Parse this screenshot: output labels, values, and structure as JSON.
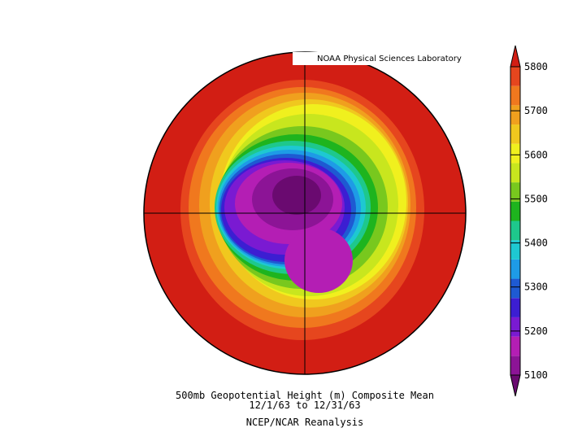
{
  "map": {
    "credit": "NOAA Physical Sciences Laboratory",
    "caption": [
      "500mb Geopotential Height (m) Composite Mean",
      "12/1/63  to 12/31/63",
      "NCEP/NCAR Reanalysis"
    ]
  },
  "colorbar": {
    "ticks": [
      5100,
      5200,
      5300,
      5400,
      5500,
      5600,
      5700,
      5800
    ],
    "colors": [
      "#6a0a70",
      "#8c1496",
      "#b41eb4",
      "#7a1ad2",
      "#3c1ed2",
      "#1e5ad2",
      "#1e9be6",
      "#1ec8d2",
      "#1ec88c",
      "#1eb41e",
      "#78c81e",
      "#c8e61e",
      "#f0f01e",
      "#f0c81e",
      "#f0a01e",
      "#f0781e",
      "#e6461e",
      "#d21e14"
    ]
  }
}
